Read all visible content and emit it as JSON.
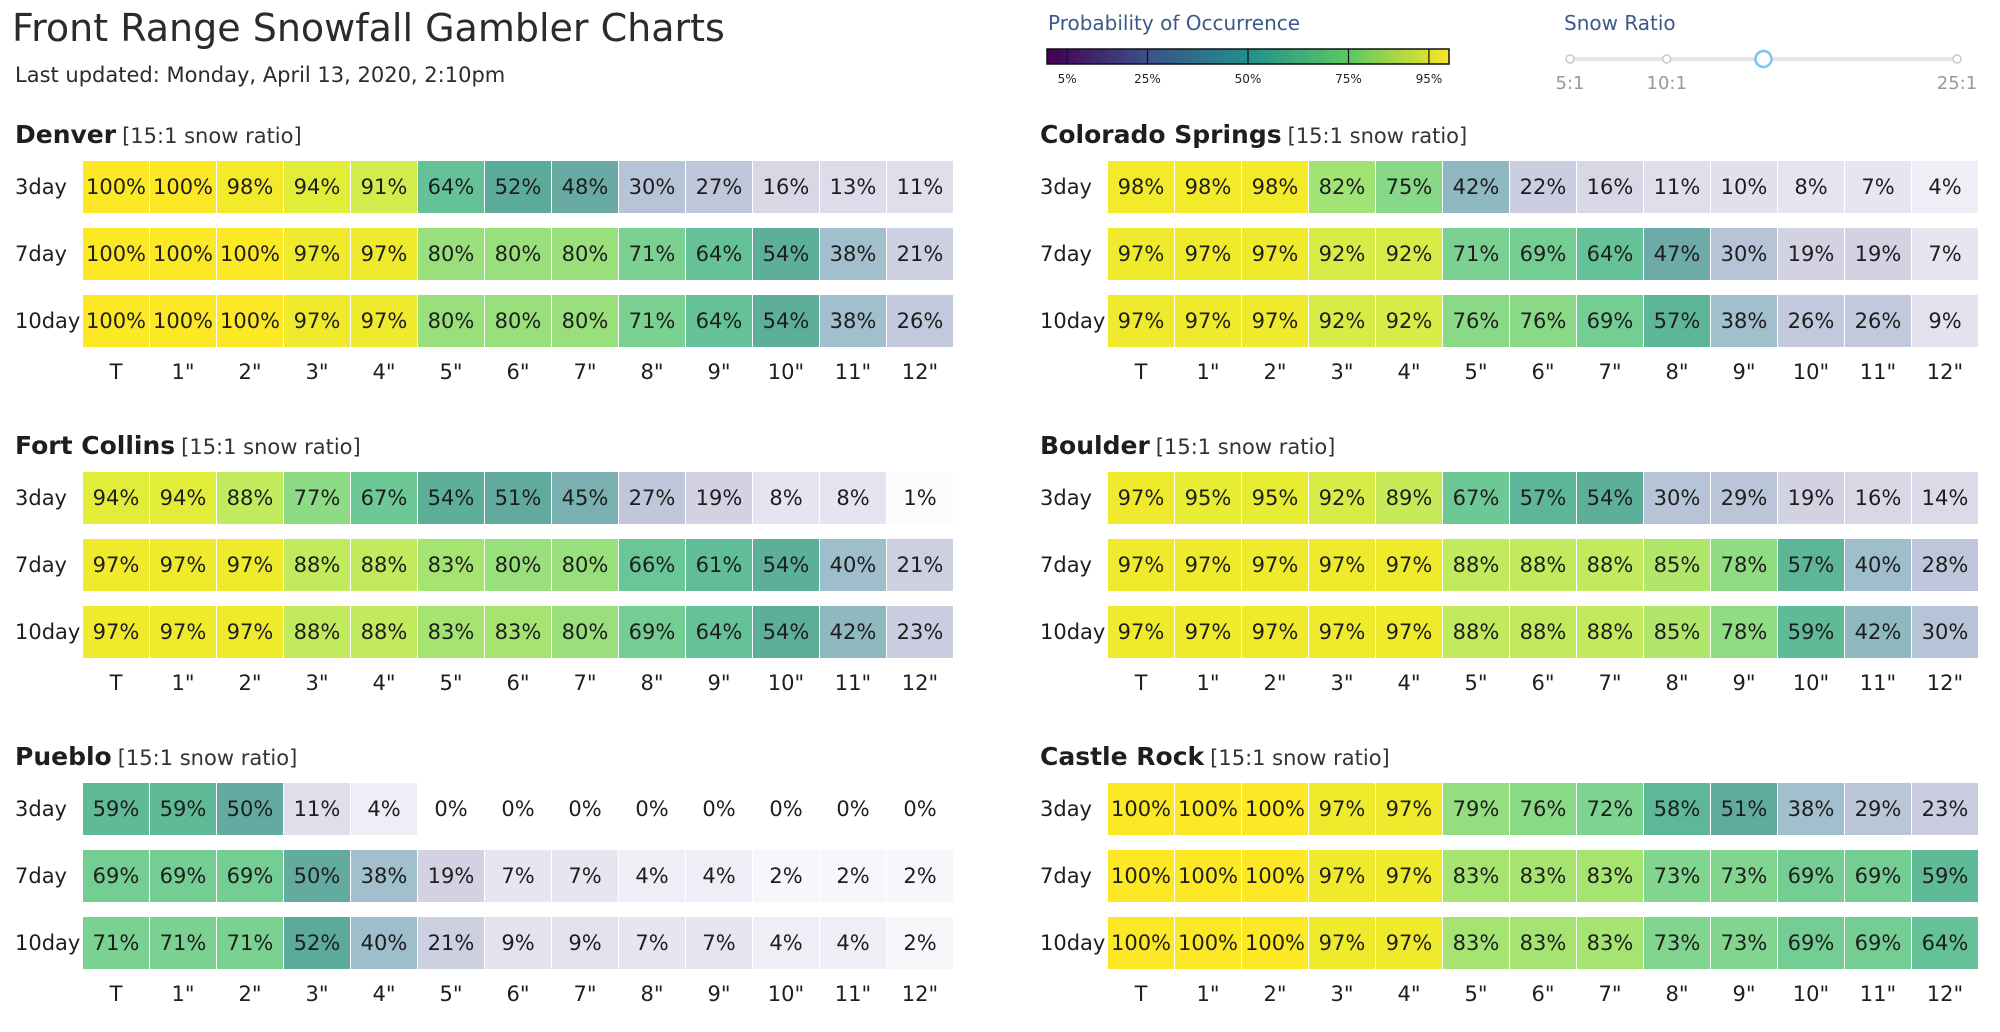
{
  "header": {
    "title": "Front Range Snowfall Gambler Charts",
    "last_updated": "Last updated: Monday, April 13, 2020, 2:10pm"
  },
  "legend": {
    "title": "Probability of Occurrence",
    "ticks": [
      "5%",
      "25%",
      "50%",
      "75%",
      "95%"
    ],
    "tick_values": [
      5,
      25,
      50,
      75,
      95
    ]
  },
  "snow_ratio": {
    "title": "Snow Ratio",
    "labels": [
      "5:1",
      "10:1",
      "25:1"
    ],
    "label_values": [
      5,
      10,
      25
    ],
    "min": 5,
    "max": 25,
    "stops": [
      5,
      10,
      15,
      25
    ],
    "selected": 15
  },
  "chart_data": [
    {
      "type": "heatmap",
      "title": "Denver",
      "note": "[15:1 snow ratio]",
      "columns": [
        "T",
        "1\"",
        "2\"",
        "3\"",
        "4\"",
        "5\"",
        "6\"",
        "7\"",
        "8\"",
        "9\"",
        "10\"",
        "11\"",
        "12\""
      ],
      "rows": [
        "3day",
        "7day",
        "10day"
      ],
      "values": [
        [
          100,
          100,
          98,
          94,
          91,
          64,
          52,
          48,
          30,
          27,
          16,
          13,
          11
        ],
        [
          100,
          100,
          100,
          97,
          97,
          80,
          80,
          80,
          71,
          64,
          54,
          38,
          21
        ],
        [
          100,
          100,
          100,
          97,
          97,
          80,
          80,
          80,
          71,
          64,
          54,
          38,
          26
        ]
      ]
    },
    {
      "type": "heatmap",
      "title": "Colorado Springs",
      "note": "[15:1 snow ratio]",
      "columns": [
        "T",
        "1\"",
        "2\"",
        "3\"",
        "4\"",
        "5\"",
        "6\"",
        "7\"",
        "8\"",
        "9\"",
        "10\"",
        "11\"",
        "12\""
      ],
      "rows": [
        "3day",
        "7day",
        "10day"
      ],
      "values": [
        [
          98,
          98,
          98,
          82,
          75,
          42,
          22,
          16,
          11,
          10,
          8,
          7,
          4
        ],
        [
          97,
          97,
          97,
          92,
          92,
          71,
          69,
          64,
          47,
          30,
          19,
          19,
          7
        ],
        [
          97,
          97,
          97,
          92,
          92,
          76,
          76,
          69,
          57,
          38,
          26,
          26,
          9
        ]
      ]
    },
    {
      "type": "heatmap",
      "title": "Fort Collins",
      "note": "[15:1 snow ratio]",
      "columns": [
        "T",
        "1\"",
        "2\"",
        "3\"",
        "4\"",
        "5\"",
        "6\"",
        "7\"",
        "8\"",
        "9\"",
        "10\"",
        "11\"",
        "12\""
      ],
      "rows": [
        "3day",
        "7day",
        "10day"
      ],
      "values": [
        [
          94,
          94,
          88,
          77,
          67,
          54,
          51,
          45,
          27,
          19,
          8,
          8,
          1
        ],
        [
          97,
          97,
          97,
          88,
          88,
          83,
          80,
          80,
          66,
          61,
          54,
          40,
          21
        ],
        [
          97,
          97,
          97,
          88,
          88,
          83,
          83,
          80,
          69,
          64,
          54,
          42,
          23
        ]
      ]
    },
    {
      "type": "heatmap",
      "title": "Boulder",
      "note": "[15:1 snow ratio]",
      "columns": [
        "T",
        "1\"",
        "2\"",
        "3\"",
        "4\"",
        "5\"",
        "6\"",
        "7\"",
        "8\"",
        "9\"",
        "10\"",
        "11\"",
        "12\""
      ],
      "rows": [
        "3day",
        "7day",
        "10day"
      ],
      "values": [
        [
          97,
          95,
          95,
          92,
          89,
          67,
          57,
          54,
          30,
          29,
          19,
          16,
          14
        ],
        [
          97,
          97,
          97,
          97,
          97,
          88,
          88,
          88,
          85,
          78,
          57,
          40,
          28
        ],
        [
          97,
          97,
          97,
          97,
          97,
          88,
          88,
          88,
          85,
          78,
          59,
          42,
          30
        ]
      ]
    },
    {
      "type": "heatmap",
      "title": "Pueblo",
      "note": "[15:1 snow ratio]",
      "columns": [
        "T",
        "1\"",
        "2\"",
        "3\"",
        "4\"",
        "5\"",
        "6\"",
        "7\"",
        "8\"",
        "9\"",
        "10\"",
        "11\"",
        "12\""
      ],
      "rows": [
        "3day",
        "7day",
        "10day"
      ],
      "values": [
        [
          59,
          59,
          50,
          11,
          4,
          0,
          0,
          0,
          0,
          0,
          0,
          0,
          0
        ],
        [
          69,
          69,
          69,
          50,
          38,
          19,
          7,
          7,
          4,
          4,
          2,
          2,
          2
        ],
        [
          71,
          71,
          71,
          52,
          40,
          21,
          9,
          9,
          7,
          7,
          4,
          4,
          2
        ]
      ]
    },
    {
      "type": "heatmap",
      "title": "Castle Rock",
      "note": "[15:1 snow ratio]",
      "columns": [
        "T",
        "1\"",
        "2\"",
        "3\"",
        "4\"",
        "5\"",
        "6\"",
        "7\"",
        "8\"",
        "9\"",
        "10\"",
        "11\"",
        "12\""
      ],
      "rows": [
        "3day",
        "7day",
        "10day"
      ],
      "values": [
        [
          100,
          100,
          100,
          97,
          97,
          79,
          76,
          72,
          58,
          51,
          38,
          29,
          23
        ],
        [
          100,
          100,
          100,
          97,
          97,
          83,
          83,
          83,
          73,
          73,
          69,
          69,
          59
        ],
        [
          100,
          100,
          100,
          97,
          97,
          83,
          83,
          83,
          73,
          73,
          69,
          69,
          64
        ]
      ]
    }
  ]
}
